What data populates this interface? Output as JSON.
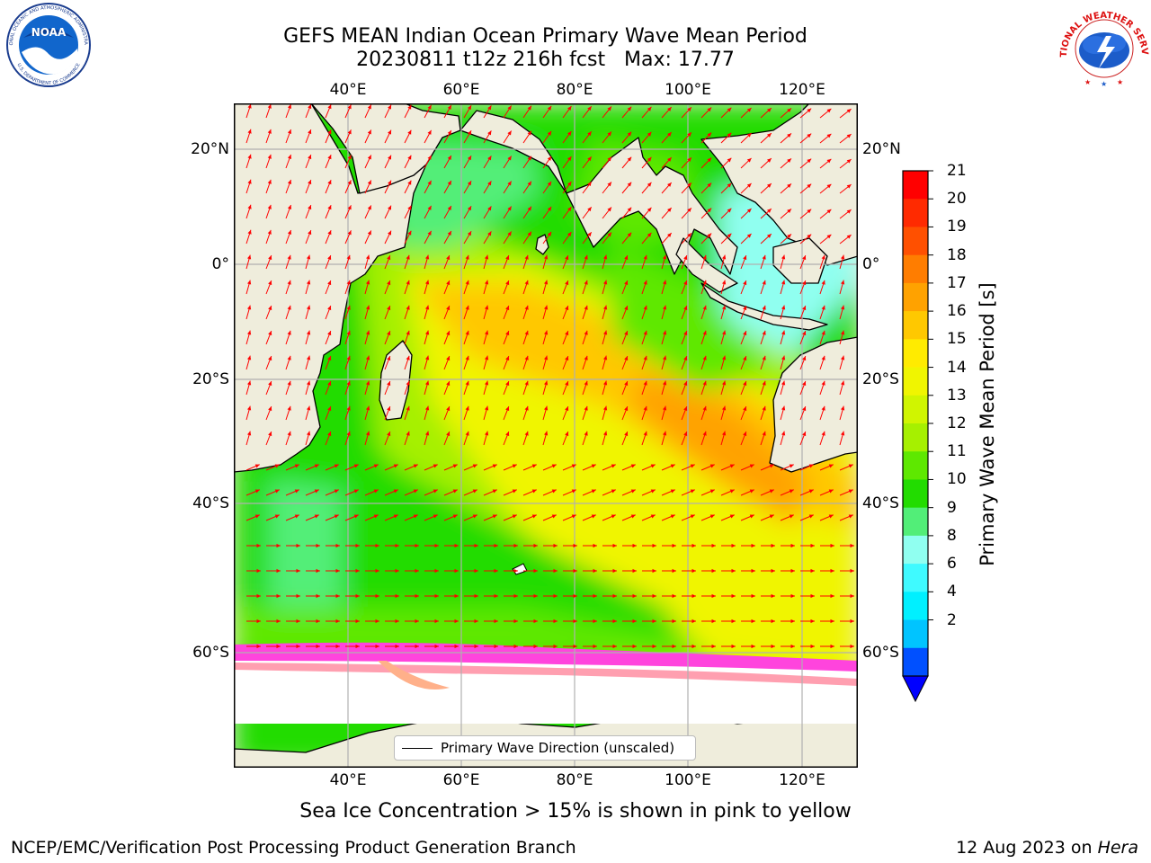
{
  "title": {
    "line1": "GEFS MEAN Indian Ocean Primary Wave Mean Period",
    "line2": "20230811 t12z 216h fcst   Max: 17.77"
  },
  "map": {
    "lon_ticks": [
      "40°E",
      "60°E",
      "80°E",
      "100°E",
      "120°E"
    ],
    "lat_ticks": [
      "20°N",
      "0°",
      "20°S",
      "40°S",
      "60°S"
    ],
    "legend_label": "Primary Wave Direction (unscaled)",
    "land_color": "#efeddc",
    "arrow_color": "#ff0000",
    "grid_color": "#b0b0b0"
  },
  "colorbar": {
    "title": "Primary Wave Mean Period [s]",
    "labels": [
      "21",
      "20",
      "19",
      "18",
      "17",
      "16",
      "15",
      "14",
      "13",
      "12",
      "11",
      "10",
      "9",
      "8",
      "6",
      "4",
      "2"
    ],
    "colors": [
      "#ff0000",
      "#ff2a00",
      "#ff5000",
      "#ff7d00",
      "#ffa200",
      "#ffc800",
      "#ffeb00",
      "#f0f500",
      "#d0f500",
      "#a6f000",
      "#5ee800",
      "#22dc00",
      "#52ee78",
      "#90fff0",
      "#3ffaff",
      "#00f0ff",
      "#00c4ff",
      "#0050ff"
    ],
    "under_color": "#0000ff"
  },
  "subtitle": "Sea Ice Concentration > 15% is shown in pink to yellow",
  "footer": {
    "left": "NCEP/EMC/Verification Post Processing Product Generation Branch",
    "date": "12 Aug 2023 on ",
    "machine": "Hera"
  },
  "logos": {
    "noaa_text": "NOAA",
    "noaa_ring_top": "NATIONAL OCEANIC AND ATMOSPHERIC ADMINISTRATION",
    "noaa_ring_bottom": "U.S. DEPARTMENT OF COMMERCE",
    "nws_ring": "NATIONAL WEATHER SERVICE"
  }
}
